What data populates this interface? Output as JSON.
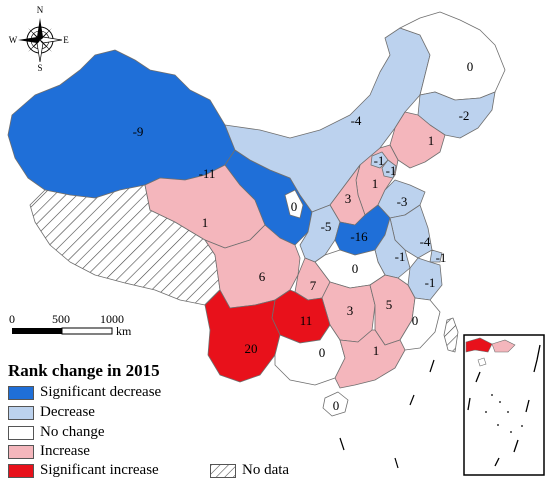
{
  "colors": {
    "significant_decrease": "#1f6fd8",
    "decrease": "#bcd2ee",
    "no_change": "#ffffff",
    "increase": "#f4b6bc",
    "significant_increase": "#e8111b",
    "border": "#6f6f6f"
  },
  "legend": {
    "title": "Rank change  in 2015",
    "items": [
      {
        "key": "significant_decrease",
        "label": "Significant decrease"
      },
      {
        "key": "decrease",
        "label": "Decrease"
      },
      {
        "key": "no_change",
        "label": "No change"
      },
      {
        "key": "increase",
        "label": "Increase"
      },
      {
        "key": "significant_increase",
        "label": "Significant increase"
      }
    ],
    "nodata_label": "No data"
  },
  "scale": {
    "labels": [
      "0",
      "500",
      "1000"
    ],
    "unit": "km"
  },
  "compass": {
    "n": "N",
    "s": "S",
    "e": "E",
    "w": "W"
  },
  "regions": [
    {
      "id": "xinjiang",
      "value": "-9",
      "class": "significant_decrease"
    },
    {
      "id": "tibet",
      "value": "",
      "class": "nodata"
    },
    {
      "id": "qinghai",
      "value": "1",
      "class": "increase"
    },
    {
      "id": "gansu",
      "value": "-11",
      "class": "significant_decrease"
    },
    {
      "id": "inner-mongolia",
      "value": "-4",
      "class": "decrease"
    },
    {
      "id": "heilongjiang",
      "value": "0",
      "class": "no_change"
    },
    {
      "id": "jilin",
      "value": "-2",
      "class": "decrease"
    },
    {
      "id": "liaoning",
      "value": "1",
      "class": "increase"
    },
    {
      "id": "beijing",
      "value": "-1",
      "class": "decrease"
    },
    {
      "id": "tianjin",
      "value": "-1",
      "class": "decrease"
    },
    {
      "id": "hebei",
      "value": "1",
      "class": "increase"
    },
    {
      "id": "shanxi",
      "value": "3",
      "class": "increase"
    },
    {
      "id": "shandong",
      "value": "-3",
      "class": "decrease"
    },
    {
      "id": "ningxia",
      "value": "0",
      "class": "no_change"
    },
    {
      "id": "shaanxi",
      "value": "-5",
      "class": "decrease"
    },
    {
      "id": "henan",
      "value": "-16",
      "class": "significant_decrease"
    },
    {
      "id": "jiangsu",
      "value": "-4",
      "class": "decrease"
    },
    {
      "id": "anhui",
      "value": "-1",
      "class": "decrease"
    },
    {
      "id": "shanghai",
      "value": "-1",
      "class": "decrease"
    },
    {
      "id": "zhejiang",
      "value": "-1",
      "class": "decrease"
    },
    {
      "id": "hubei",
      "value": "0",
      "class": "no_change"
    },
    {
      "id": "sichuan",
      "value": "6",
      "class": "increase"
    },
    {
      "id": "chongqing",
      "value": "7",
      "class": "increase"
    },
    {
      "id": "hunan",
      "value": "3",
      "class": "increase"
    },
    {
      "id": "jiangxi",
      "value": "5",
      "class": "increase"
    },
    {
      "id": "fujian",
      "value": "0",
      "class": "no_change"
    },
    {
      "id": "guizhou",
      "value": "11",
      "class": "significant_increase"
    },
    {
      "id": "yunnan",
      "value": "20",
      "class": "significant_increase"
    },
    {
      "id": "guangxi",
      "value": "0",
      "class": "no_change"
    },
    {
      "id": "guangdong",
      "value": "1",
      "class": "increase"
    },
    {
      "id": "hainan",
      "value": "0",
      "class": "no_change"
    },
    {
      "id": "taiwan",
      "value": "",
      "class": "nodata"
    }
  ]
}
